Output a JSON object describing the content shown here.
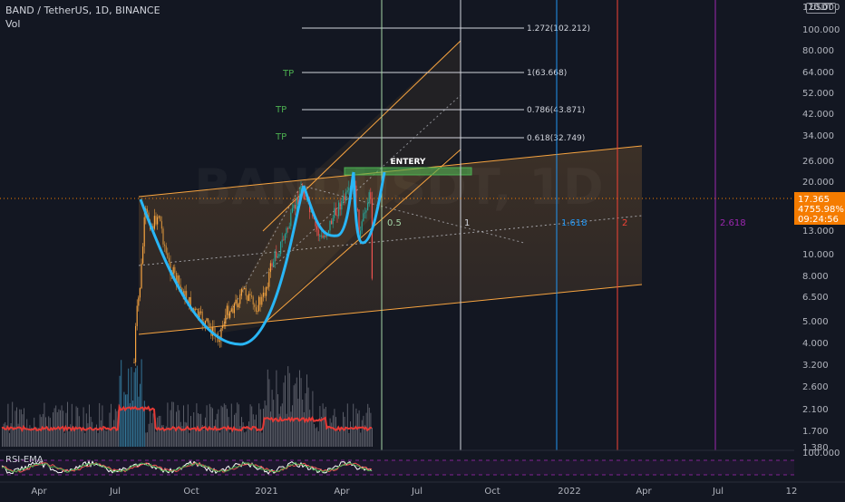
{
  "header": {
    "symbol_line": "BAND / TetherUS, 1D, BINANCE",
    "vol_label": "Vol",
    "currency_badge": "USDT",
    "indicator_label": "RSI-EMA"
  },
  "price_scale": [
    "120.000",
    "100.000",
    "80.000",
    "64.000",
    "52.000",
    "42.000",
    "34.000",
    "26.000",
    "20.000",
    "16.000",
    "13.000",
    "10.000",
    "8.000",
    "6.500",
    "5.000",
    "4.000",
    "3.200",
    "2.600",
    "2.100",
    "1.700",
    "1.380"
  ],
  "rsi_scale_top": "100.000",
  "time_axis": [
    "Apr",
    "Jul",
    "Oct",
    "2021",
    "Apr",
    "Jul",
    "Oct",
    "2022",
    "Apr",
    "Jul",
    "12"
  ],
  "last_price": {
    "price": "17.365",
    "change": "4755.98%",
    "countdown": "09:24:56"
  },
  "fib_extension_levels": [
    "1.272(102.212)",
    "1(63.668)",
    "0.786(43.871)",
    "0.618(32.749)"
  ],
  "tp_labels": [
    "TP",
    "TP",
    "TP"
  ],
  "entry_label": "ENTERY",
  "fib_time_labels": [
    "0.5",
    "1",
    "1.618",
    "2",
    "2.618"
  ],
  "watermark": "BANDUSDT, 1D",
  "colors": {
    "background": "#131722",
    "up": "#26a69a",
    "down": "#ef5350",
    "candle_orange": "#f7a440",
    "channel": "#f7a440",
    "cup": "#29b6f6",
    "volume_ma": "#e53935",
    "tp_green": "#4caf50",
    "fib_blue": "#2196f3",
    "fib_red": "#f44336",
    "fib_purple": "#9c27b0",
    "fib_green": "#a5d6a7",
    "last_price_bg": "#f57c00"
  }
}
